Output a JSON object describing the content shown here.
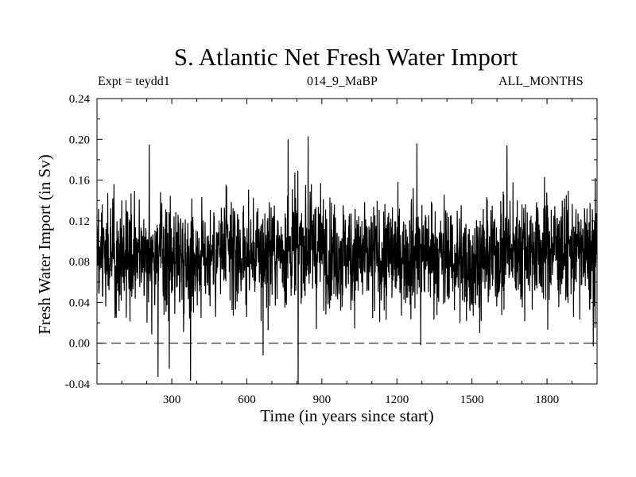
{
  "chart_data": {
    "type": "line",
    "title": "S. Atlantic Net Fresh Water Import",
    "subtitle_left": "Expt = teydd1",
    "subtitle_center": "014_9_MaBP",
    "subtitle_right": "ALL_MONTHS",
    "xlabel": "Time (in years since start)",
    "ylabel": "Fresh Water Import (in Sv)",
    "xlim": [
      1,
      2000
    ],
    "ylim": [
      -0.04,
      0.24
    ],
    "xticks": [
      300,
      600,
      900,
      1200,
      1500,
      1800
    ],
    "xtick_labels": [
      "300",
      "600",
      "900",
      "1200",
      "1500",
      "1800"
    ],
    "yticks": [
      -0.04,
      0.0,
      0.04,
      0.08,
      0.12,
      0.16,
      0.2,
      0.24
    ],
    "ytick_labels": [
      "-0.04",
      "0.00",
      "0.04",
      "0.08",
      "0.12",
      "0.16",
      "0.20",
      "0.24"
    ],
    "reference_line": {
      "y": 0.0,
      "style": "dashed"
    },
    "series": [
      {
        "name": "S. Atlantic Net Fresh Water Import",
        "n_points": 2000,
        "mean": 0.088,
        "noise_sd": 0.027,
        "envelope": {
          "x": [
            1,
            100,
            200,
            300,
            400,
            500,
            600,
            700,
            800,
            900,
            1000,
            1100,
            1200,
            1300,
            1400,
            1500,
            1600,
            1700,
            1800,
            1900,
            2000
          ],
          "mean": [
            0.088,
            0.09,
            0.089,
            0.087,
            0.085,
            0.09,
            0.084,
            0.09,
            0.095,
            0.093,
            0.087,
            0.083,
            0.085,
            0.09,
            0.082,
            0.08,
            0.087,
            0.092,
            0.094,
            0.09,
            0.086
          ]
        },
        "extremes": [
          {
            "x": 210,
            "y": 0.195
          },
          {
            "x": 245,
            "y": -0.033
          },
          {
            "x": 290,
            "y": -0.025
          },
          {
            "x": 375,
            "y": -0.037
          },
          {
            "x": 665,
            "y": -0.012
          },
          {
            "x": 765,
            "y": 0.2
          },
          {
            "x": 805,
            "y": -0.04
          },
          {
            "x": 845,
            "y": 0.203
          },
          {
            "x": 1280,
            "y": 0.196
          },
          {
            "x": 1295,
            "y": -0.002
          },
          {
            "x": 1640,
            "y": 0.194
          },
          {
            "x": 1985,
            "y": -0.003
          }
        ]
      }
    ]
  }
}
